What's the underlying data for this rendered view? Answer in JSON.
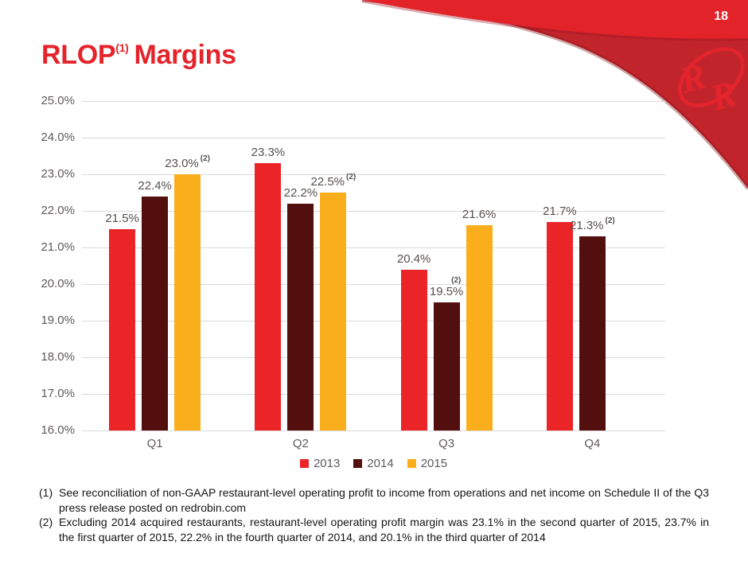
{
  "page": {
    "number": "18"
  },
  "title": {
    "main": "RLOP",
    "sup": "(1)",
    "rest": "Margins"
  },
  "brand": {
    "logo": "RR",
    "bright_red": "#e2232a",
    "band_red": "#c2242b"
  },
  "colors": {
    "grid": "#dbd9d9",
    "chart_text": "#5f595d",
    "footnote_text": "#141414"
  },
  "chart_data": {
    "type": "bar",
    "title": "",
    "xlabel": "",
    "ylabel": "",
    "categories": [
      "Q1",
      "Q2",
      "Q3",
      "Q4"
    ],
    "ylim": [
      16.0,
      25.0
    ],
    "ytick_step": 1.0,
    "grid": true,
    "legend_position": "bottom",
    "ytick_labels": [
      "25.0%",
      "24.0%",
      "23.0%",
      "22.0%",
      "21.0%",
      "20.0%",
      "19.0%",
      "18.0%",
      "17.0%",
      "16.0%"
    ],
    "series": [
      {
        "name": "2013",
        "color": "#eb2428",
        "points": [
          {
            "v": 21.5,
            "label": "21.5%"
          },
          {
            "v": 23.3,
            "label": "23.3%"
          },
          {
            "v": 20.4,
            "label": "20.4%"
          },
          {
            "v": 21.7,
            "label": "21.7%"
          }
        ]
      },
      {
        "name": "2014",
        "color": "#520f0e",
        "points": [
          {
            "v": 22.4,
            "label": "22.4%"
          },
          {
            "v": 22.2,
            "label": "22.2%"
          },
          {
            "v": 19.5,
            "label": "19.5%",
            "sup": "(2)",
            "sup_above": true
          },
          {
            "v": 21.3,
            "label": "21.3%",
            "sup": "(2)"
          }
        ]
      },
      {
        "name": "2015",
        "color": "#fbae1c",
        "points": [
          {
            "v": 23.0,
            "label": "23.0%",
            "sup": "(2)"
          },
          {
            "v": 22.5,
            "label": "22.5%",
            "sup": "(2)"
          },
          {
            "v": 21.6,
            "label": "21.6%"
          },
          null
        ]
      }
    ]
  },
  "footnotes": [
    {
      "marker": "(1)",
      "text": "See reconciliation of non-GAAP restaurant-level operating profit to income from operations and net income on Schedule II of the Q3 press release posted on redrobin.com"
    },
    {
      "marker": "(2)",
      "text": "Excluding 2014 acquired restaurants, restaurant-level operating profit margin was 23.1% in the second quarter of 2015, 23.7% in the first quarter of 2015, 22.2% in the fourth quarter of 2014, and 20.1% in the third quarter of 2014"
    }
  ]
}
